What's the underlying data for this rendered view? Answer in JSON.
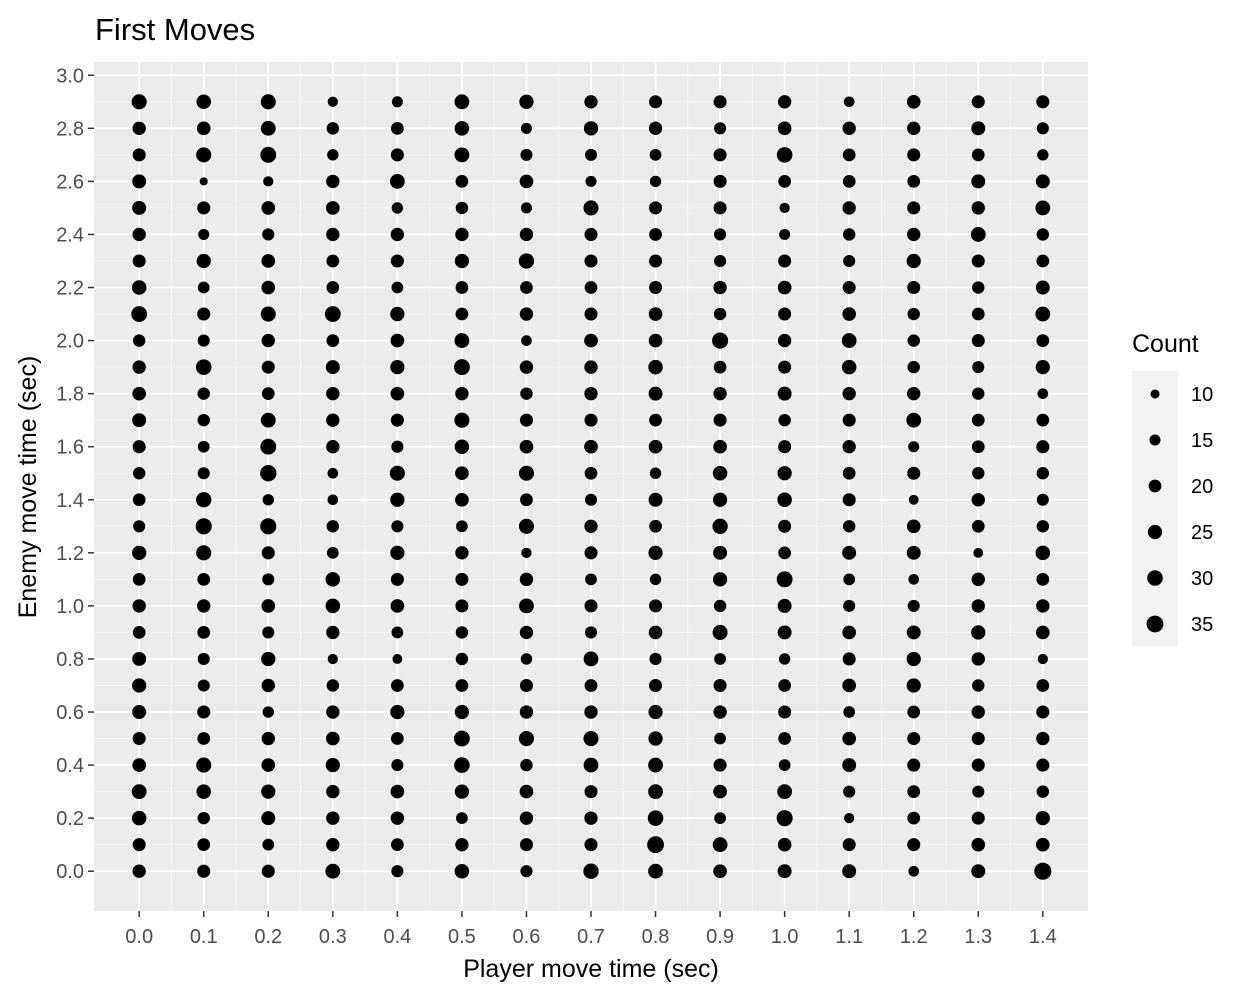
{
  "chart_data": {
    "type": "scatter",
    "title": "First Moves",
    "xlabel": "Player move time (sec)",
    "ylabel": "Enemy move time (sec)",
    "xlim": [
      -0.07,
      1.47
    ],
    "ylim": [
      -0.15,
      3.05
    ],
    "x_ticks": [
      0.0,
      0.1,
      0.2,
      0.3,
      0.4,
      0.5,
      0.6,
      0.7,
      0.8,
      0.9,
      1.0,
      1.1,
      1.2,
      1.3,
      1.4
    ],
    "x_tick_labels": [
      "0.0",
      "0.1",
      "0.2",
      "0.3",
      "0.4",
      "0.5",
      "0.6",
      "0.7",
      "0.8",
      "0.9",
      "1.0",
      "1.1",
      "1.2",
      "1.3",
      "1.4"
    ],
    "y_ticks": [
      0.0,
      0.2,
      0.4,
      0.6,
      0.8,
      1.0,
      1.2,
      1.4,
      1.6,
      1.8,
      2.0,
      2.2,
      2.4,
      2.6,
      2.8,
      3.0
    ],
    "y_tick_labels": [
      "0.0",
      "0.2",
      "0.4",
      "0.6",
      "0.8",
      "1.0",
      "1.2",
      "1.4",
      "1.6",
      "1.8",
      "2.0",
      "2.2",
      "2.4",
      "2.6",
      "2.8",
      "3.0"
    ],
    "y_values": [
      0.0,
      0.1,
      0.2,
      0.3,
      0.4,
      0.5,
      0.6,
      0.7,
      0.8,
      0.9,
      1.0,
      1.1,
      1.2,
      1.3,
      1.4,
      1.5,
      1.6,
      1.7,
      1.8,
      1.9,
      2.0,
      2.1,
      2.2,
      2.3,
      2.4,
      2.5,
      2.6,
      2.7,
      2.8,
      2.9
    ],
    "size_variable": "Count",
    "grid": true,
    "background": "#ebebeb",
    "point_color": "#000000",
    "series": [
      {
        "x": 0.0,
        "counts": [
          22,
          21,
          26,
          27,
          23,
          21,
          24,
          25,
          24,
          20,
          22,
          20,
          25,
          18,
          20,
          19,
          21,
          24,
          23,
          22,
          19,
          31,
          26,
          21,
          22,
          24,
          24,
          21,
          22,
          28
        ]
      },
      {
        "x": 0.1,
        "counts": [
          21,
          20,
          19,
          26,
          28,
          20,
          21,
          18,
          18,
          20,
          22,
          20,
          28,
          32,
          29,
          18,
          17,
          19,
          19,
          30,
          18,
          21,
          17,
          25,
          15,
          21,
          8,
          28,
          23,
          26
        ]
      },
      {
        "x": 0.2,
        "counts": [
          21,
          17,
          24,
          25,
          23,
          22,
          16,
          22,
          25,
          18,
          23,
          18,
          21,
          32,
          16,
          33,
          31,
          27,
          20,
          21,
          22,
          28,
          23,
          23,
          18,
          23,
          13,
          31,
          27,
          28
        ]
      },
      {
        "x": 0.3,
        "counts": [
          27,
          22,
          22,
          22,
          25,
          23,
          22,
          19,
          13,
          22,
          26,
          26,
          17,
          19,
          14,
          14,
          22,
          22,
          22,
          24,
          20,
          31,
          20,
          20,
          22,
          23,
          22,
          16,
          19,
          13
        ]
      },
      {
        "x": 0.4,
        "counts": [
          18,
          20,
          22,
          23,
          18,
          20,
          25,
          20,
          12,
          17,
          23,
          21,
          25,
          18,
          25,
          28,
          18,
          21,
          23,
          25,
          23,
          25,
          17,
          21,
          22,
          16,
          27,
          21,
          20,
          15
        ]
      },
      {
        "x": 0.5,
        "counts": [
          26,
          22,
          17,
          25,
          30,
          31,
          25,
          20,
          19,
          19,
          21,
          21,
          22,
          17,
          23,
          23,
          26,
          28,
          22,
          31,
          27,
          20,
          20,
          25,
          22,
          19,
          20,
          27,
          26,
          27
        ]
      },
      {
        "x": 0.6,
        "counts": [
          18,
          21,
          22,
          23,
          19,
          28,
          22,
          21,
          16,
          22,
          27,
          22,
          13,
          28,
          20,
          28,
          23,
          21,
          19,
          22,
          14,
          22,
          20,
          29,
          22,
          15,
          23,
          18,
          15,
          25
        ]
      },
      {
        "x": 0.7,
        "counts": [
          29,
          21,
          22,
          21,
          27,
          28,
          22,
          20,
          27,
          18,
          21,
          17,
          21,
          22,
          18,
          20,
          23,
          21,
          22,
          22,
          23,
          21,
          20,
          21,
          21,
          28,
          15,
          18,
          25,
          22
        ]
      },
      {
        "x": 0.8,
        "counts": [
          27,
          35,
          30,
          27,
          27,
          25,
          25,
          21,
          18,
          23,
          21,
          16,
          25,
          20,
          24,
          16,
          23,
          20,
          24,
          26,
          23,
          23,
          21,
          21,
          20,
          21,
          16,
          17,
          22,
          21
        ]
      },
      {
        "x": 0.9,
        "counts": [
          23,
          27,
          17,
          23,
          21,
          17,
          22,
          21,
          17,
          28,
          19,
          25,
          24,
          29,
          25,
          26,
          23,
          21,
          22,
          20,
          32,
          19,
          22,
          18,
          18,
          21,
          21,
          21,
          18,
          21
        ]
      },
      {
        "x": 1.0,
        "counts": [
          24,
          23,
          32,
          27,
          17,
          20,
          21,
          20,
          16,
          24,
          24,
          31,
          20,
          21,
          26,
          25,
          21,
          19,
          24,
          21,
          22,
          21,
          23,
          21,
          15,
          13,
          20,
          30,
          23,
          22
        ]
      },
      {
        "x": 1.1,
        "counts": [
          24,
          21,
          13,
          18,
          24,
          23,
          17,
          23,
          21,
          23,
          18,
          17,
          24,
          19,
          21,
          20,
          22,
          21,
          22,
          26,
          27,
          23,
          21,
          18,
          19,
          22,
          20,
          20,
          22,
          14
        ]
      },
      {
        "x": 1.2,
        "counts": [
          14,
          21,
          20,
          20,
          21,
          21,
          20,
          25,
          25,
          24,
          18,
          14,
          24,
          23,
          12,
          21,
          15,
          27,
          22,
          19,
          19,
          19,
          21,
          25,
          22,
          21,
          20,
          21,
          22,
          23
        ]
      },
      {
        "x": 1.3,
        "counts": [
          24,
          23,
          21,
          18,
          21,
          21,
          22,
          19,
          22,
          25,
          22,
          22,
          12,
          20,
          22,
          19,
          20,
          20,
          19,
          18,
          21,
          20,
          19,
          21,
          27,
          22,
          24,
          20,
          24,
          21
        ]
      },
      {
        "x": 1.4,
        "counts": [
          36,
          23,
          25,
          19,
          21,
          22,
          21,
          20,
          13,
          23,
          22,
          20,
          26,
          19,
          18,
          19,
          21,
          20,
          14,
          25,
          20,
          27,
          24,
          20,
          19,
          27,
          24,
          16,
          18,
          21
        ]
      }
    ],
    "legend": {
      "title": "Count",
      "position": "right",
      "values": [
        10,
        15,
        20,
        25,
        30,
        35
      ],
      "labels": [
        "10",
        "15",
        "20",
        "25",
        "30",
        "35"
      ]
    }
  }
}
